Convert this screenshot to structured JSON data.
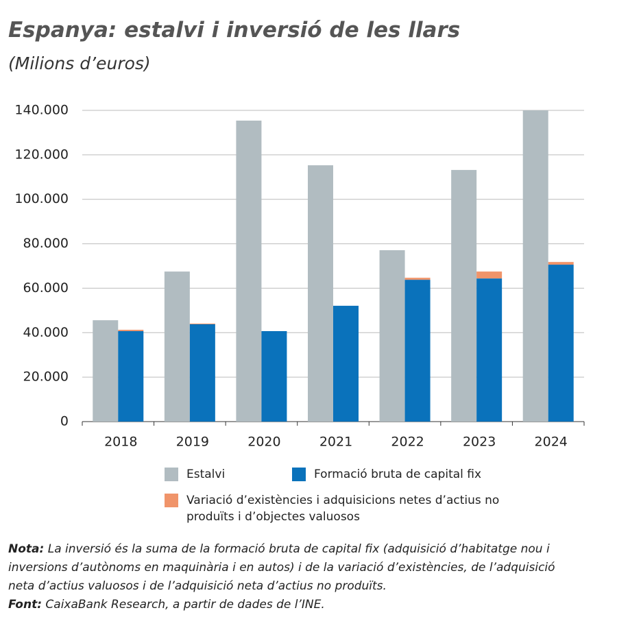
{
  "chart_data": {
    "type": "bar",
    "title": "Espanya: estalvi i inversió de les llars",
    "subtitle": "(Milions d’euros)",
    "categories": [
      "2018",
      "2019",
      "2020",
      "2021",
      "2022",
      "2023",
      "2024"
    ],
    "series": [
      {
        "name": "Estalvi",
        "color": "#b1bcc1",
        "values": [
          45600,
          67500,
          135400,
          115300,
          77100,
          113200,
          140000
        ]
      },
      {
        "name": "Formació bruta de capital fix",
        "color": "#0a72bb",
        "values": [
          40700,
          43800,
          40700,
          52100,
          63800,
          64400,
          70600
        ]
      },
      {
        "name": "Variació d’existències i adquisicions netes d’actius no produïts i d’objectes valuosos",
        "color": "#f0946a",
        "values": [
          600,
          300,
          0,
          0,
          900,
          3100,
          1200
        ]
      }
    ],
    "ylim": [
      0,
      140000
    ],
    "yticks": [
      0,
      {
        "value": 20000,
        "label": "20.000"
      },
      {
        "value": 40000,
        "label": "40.000"
      },
      {
        "value": 60000,
        "label": "60.000"
      },
      {
        "value": 80000,
        "label": "80.000"
      },
      {
        "value": 100000,
        "label": "100.000"
      },
      {
        "value": 120000,
        "label": "120.000"
      },
      {
        "value": 140000,
        "label": "140.000"
      }
    ],
    "grid": true
  },
  "notes": [
    {
      "label": "Nota:",
      "text": "La inversió és la suma de la formació bruta de capital fix (adquisició d’habitatge nou i inversions d’autònoms en maquinària i en autos) i de la variació d’existències, de l’adquisició neta d’actius valuosos i de l’adquisició neta d’actius no produïts."
    },
    {
      "label": "Font:",
      "text": "CaixaBank Research, a partir de dades de l’INE."
    }
  ]
}
